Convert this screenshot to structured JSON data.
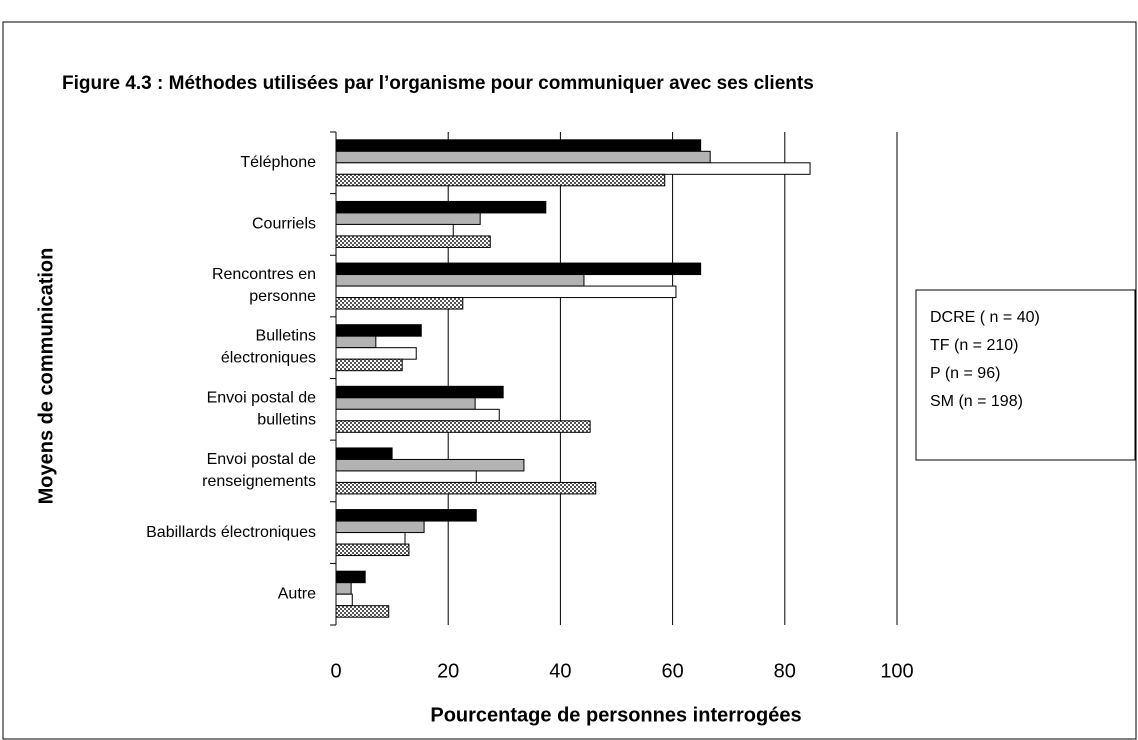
{
  "chart_data": {
    "type": "barh",
    "title": "Figure 4.3 : Méthodes utilisées par l’organisme pour communiquer avec ses clients",
    "xlabel": "Pourcentage de personnes interrogées",
    "ylabel": "Moyens de communication",
    "categories": [
      "Téléphone",
      "Courriels",
      "Rencontres en\npersonne",
      "Bulletins\nélectroniques",
      "Envoi postal de\nbulletins",
      "Envoi postal de\nrenseignements",
      "Babillards électroniques",
      "Autre"
    ],
    "series": [
      {
        "name": "DCRE ( n = 40)",
        "color": "#000000",
        "values": [
          65,
          37.4,
          65,
          15.2,
          29.8,
          10,
          25,
          5.2
        ]
      },
      {
        "name": "TF (n = 210)",
        "color": "#b3b3b3",
        "values": [
          66.7,
          25.7,
          44.2,
          7.1,
          24.8,
          33.5,
          15.7,
          2.7
        ]
      },
      {
        "name": "P (n = 96)",
        "color": "#ffffff",
        "values": [
          84.5,
          20.9,
          60.6,
          14.3,
          29.1,
          25,
          12.3,
          2.9
        ]
      },
      {
        "name": "SM (n = 198)",
        "color": "#555555",
        "values": [
          58.6,
          27.5,
          22.6,
          11.8,
          45.3,
          46.3,
          13,
          9.4
        ]
      }
    ],
    "xlim": [
      0,
      100
    ],
    "xticks": [
      0,
      20,
      40,
      60,
      80,
      100
    ],
    "grid": true,
    "legend": "right"
  }
}
